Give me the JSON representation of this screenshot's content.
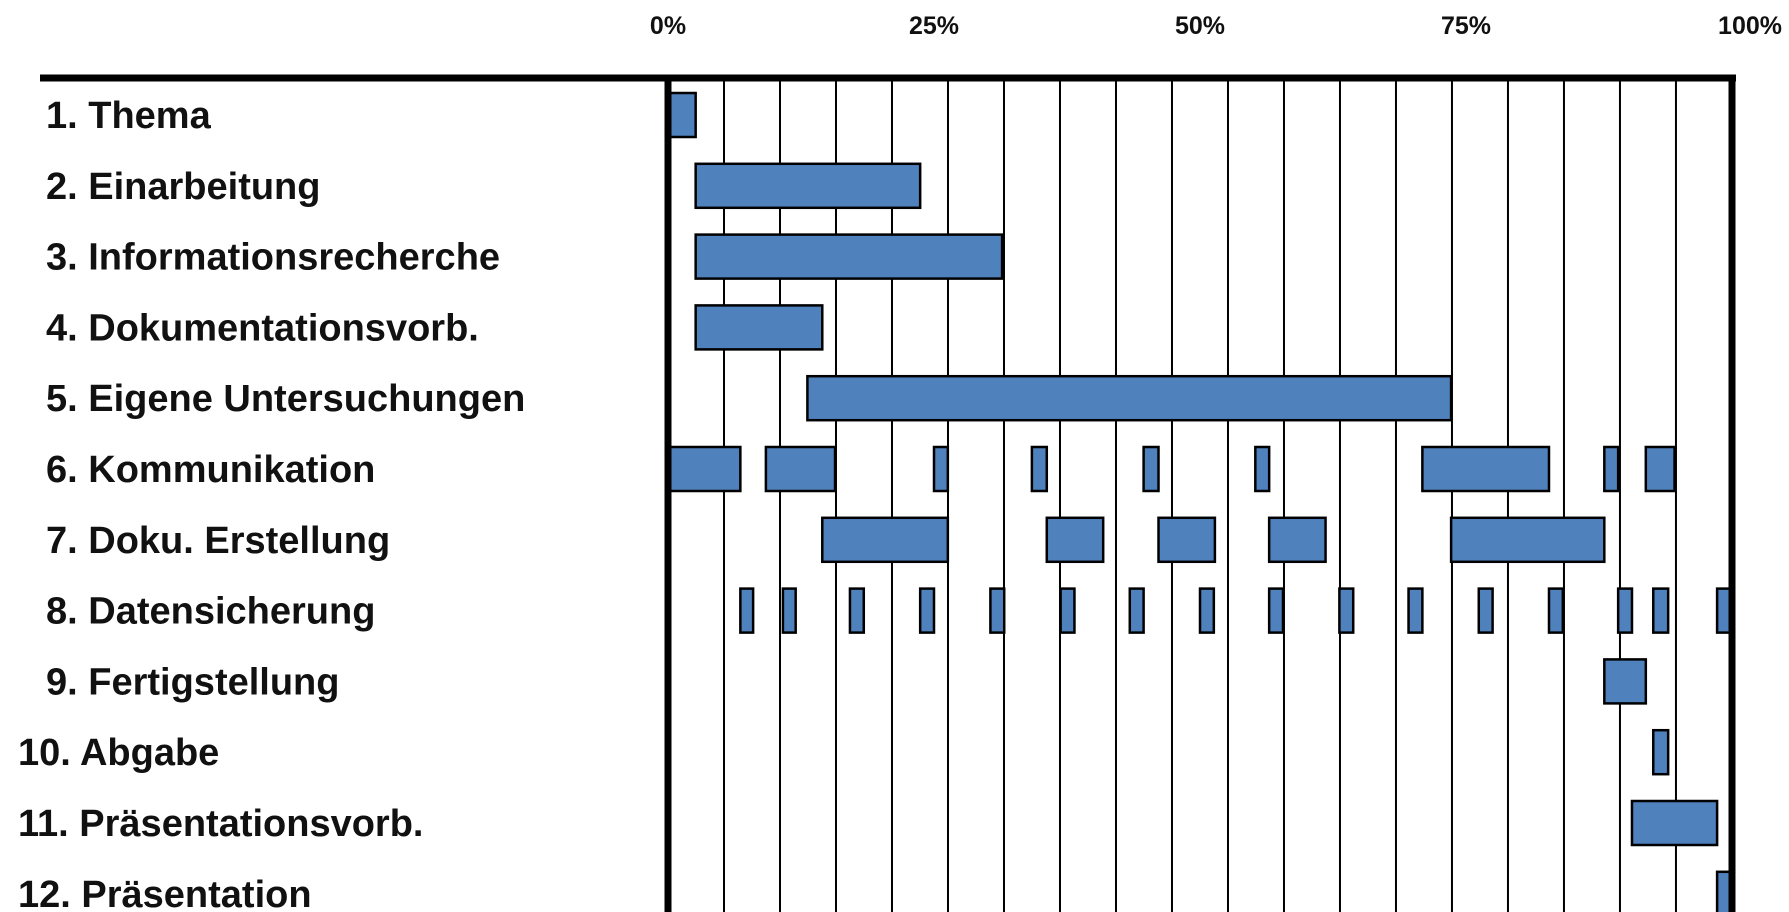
{
  "chart_data": {
    "type": "gantt",
    "x_unit": "%",
    "xlim": [
      0,
      100
    ],
    "x_ticks": [
      {
        "value": 0,
        "label": "0%"
      },
      {
        "value": 25,
        "label": "25%"
      },
      {
        "value": 50,
        "label": "50%"
      },
      {
        "value": 75,
        "label": "75%"
      },
      {
        "value": 100,
        "label": "100%"
      }
    ],
    "gridline_step": 5.263,
    "bar_color": "#4f81bd",
    "tasks": [
      {
        "label": "1. Thema",
        "segments": [
          [
            0.2,
            2.6
          ]
        ]
      },
      {
        "label": "2. Einarbeitung",
        "segments": [
          [
            2.6,
            23.7
          ]
        ]
      },
      {
        "label": "3. Informationsrecherche",
        "segments": [
          [
            2.6,
            31.4
          ]
        ]
      },
      {
        "label": "4. Dokumentationsvorb.",
        "segments": [
          [
            2.6,
            14.5
          ]
        ]
      },
      {
        "label": "5. Eigene Untersuchungen",
        "segments": [
          [
            13.1,
            73.6
          ]
        ]
      },
      {
        "label": "6. Kommunikation",
        "segments": [
          [
            0.2,
            6.8
          ],
          [
            9.2,
            15.7
          ],
          [
            25.0,
            26.3
          ],
          [
            34.2,
            35.6
          ],
          [
            44.7,
            46.1
          ],
          [
            55.2,
            56.5
          ],
          [
            70.9,
            82.8
          ],
          [
            88.0,
            89.3
          ],
          [
            91.9,
            94.6
          ]
        ]
      },
      {
        "label": "7. Doku. Erstellung",
        "segments": [
          [
            14.5,
            26.3
          ],
          [
            35.6,
            40.9
          ],
          [
            46.1,
            51.4
          ],
          [
            56.5,
            61.8
          ],
          [
            73.6,
            88.0
          ]
        ]
      },
      {
        "label": "8. Datensicherung",
        "segments": [
          [
            6.8,
            8.0
          ],
          [
            10.8,
            12.0
          ],
          [
            17.1,
            18.4
          ],
          [
            23.7,
            25.0
          ],
          [
            30.3,
            31.6
          ],
          [
            36.9,
            38.2
          ],
          [
            43.4,
            44.7
          ],
          [
            50.0,
            51.3
          ],
          [
            56.5,
            57.8
          ],
          [
            63.1,
            64.4
          ],
          [
            69.6,
            70.9
          ],
          [
            76.2,
            77.5
          ],
          [
            82.8,
            84.1
          ],
          [
            89.3,
            90.6
          ],
          [
            92.6,
            94.0
          ],
          [
            98.6,
            99.8
          ]
        ]
      },
      {
        "label": "9. Fertigstellung",
        "segments": [
          [
            88.0,
            91.9
          ]
        ]
      },
      {
        "label": "10. Abgabe",
        "segments": [
          [
            92.6,
            94.0
          ]
        ]
      },
      {
        "label": "11. Präsentationsvorb.",
        "segments": [
          [
            90.6,
            98.6
          ]
        ]
      },
      {
        "label": "12. Präsentation",
        "segments": [
          [
            98.6,
            99.8
          ]
        ]
      }
    ]
  }
}
